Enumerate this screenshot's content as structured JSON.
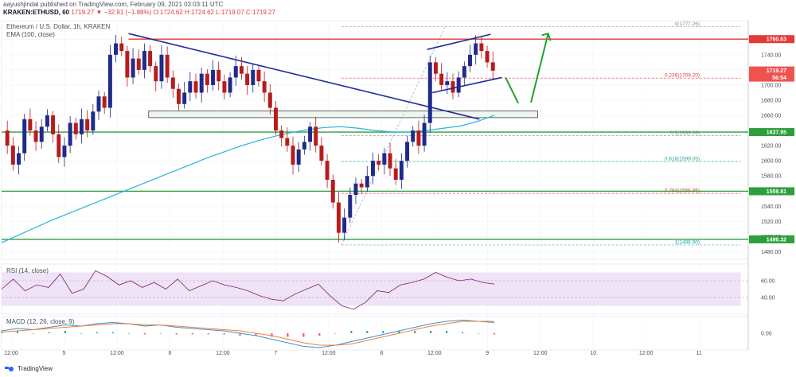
{
  "header": {
    "published": "aayushjindal published on TradingView.com, February 09, 2021 03:03:11 UTC",
    "symbol": "KRAKEN:ETHUSD, 60",
    "ohlc": "1719.27 ▼ −32.91 (−1.88%) O:1724.62 H:1724.62 L:1719.07 C:1719.27"
  },
  "legend": {
    "main_title": "Ethereum / U.S. Dollar, 1h, KRAKEN",
    "ema": "EMA (100, close)",
    "rsi": "RSI (14, close)",
    "macd": "MACD (12, 26, close, 9)"
  },
  "footer": {
    "brand": "TradingView"
  },
  "colors": {
    "up": "#26a69a",
    "down": "#ef5350",
    "candle_up": "#1e2a8c",
    "candle_down": "#b71c1c",
    "ema": "#26b5d6",
    "support": "#2e9e3a",
    "resistance": "#e53935",
    "trend": "#1f2a9e",
    "arrow": "#1aa32e",
    "rsi": "#7b1f6f",
    "rsi_band": "#efe3f7",
    "macd": "#3f8fd6",
    "signal": "#f08030"
  },
  "chart_data": {
    "type": "candlestick",
    "title": "Ethereum / U.S. Dollar, 1h, KRAKEN",
    "x_ticks": [
      "12:00",
      "5",
      "12:00",
      "6",
      "12:00",
      "7",
      "12:00",
      "8",
      "12:00",
      "9",
      "12:00",
      "10",
      "12:00",
      "11"
    ],
    "y_ticks": [
      1480,
      1500,
      1520,
      1540,
      1560,
      1580,
      1600,
      1620,
      1640,
      1660,
      1680,
      1700,
      1720,
      1740,
      1760
    ],
    "ylim": [
      1470,
      1785
    ],
    "close_path": [
      1640,
      1620,
      1595,
      1610,
      1655,
      1640,
      1625,
      1645,
      1660,
      1635,
      1605,
      1620,
      1650,
      1635,
      1655,
      1640,
      1665,
      1685,
      1670,
      1740,
      1755,
      1745,
      1710,
      1735,
      1720,
      1745,
      1725,
      1705,
      1740,
      1710,
      1695,
      1675,
      1690,
      1705,
      1690,
      1715,
      1700,
      1720,
      1705,
      1690,
      1710,
      1725,
      1715,
      1700,
      1720,
      1705,
      1690,
      1670,
      1640,
      1630,
      1620,
      1595,
      1615,
      1625,
      1645,
      1620,
      1600,
      1575,
      1545,
      1505,
      1525,
      1555,
      1570,
      1565,
      1580,
      1600,
      1595,
      1610,
      1590,
      1575,
      1600,
      1625,
      1640,
      1620,
      1650,
      1730,
      1715,
      1700,
      1705,
      1690,
      1710,
      1725,
      1740,
      1755,
      1745,
      1730,
      1719
    ],
    "price_labels": [
      {
        "value": 1760.63,
        "label": "1760.63",
        "color": "#e53935"
      },
      {
        "value": 1719.27,
        "label": "1719.27",
        "color": "#ef5350"
      },
      {
        "value": 1719.27,
        "label": "56:54",
        "color": "#ef5350"
      },
      {
        "value": 1637.95,
        "label": "1637.95",
        "color": "#2e9e3a"
      },
      {
        "value": 1559.81,
        "label": "1559.81",
        "color": "#2e9e3a"
      },
      {
        "value": 1496.32,
        "label": "1496.32",
        "color": "#2e9e3a"
      }
    ],
    "fib_levels": [
      {
        "label": "0(1777.26)",
        "value": 1777.26,
        "color": "#888888"
      },
      {
        "label": "0.236(1709.20)",
        "value": 1709.2,
        "color": "#e53935"
      },
      {
        "label": "0.5(1633.08)",
        "value": 1633.08,
        "color": "#888888"
      },
      {
        "label": "0.618(1599.05)",
        "value": 1599.05,
        "color": "#26a69a"
      },
      {
        "label": "0.764(1556.95)",
        "value": 1556.95,
        "color": "#e53935"
      },
      {
        "label": "1(1488.90)",
        "value": 1488.9,
        "color": "#26a69a"
      }
    ],
    "horizontal_lines": [
      {
        "value": 1760.63,
        "name": "resistance"
      },
      {
        "value": 1637.95,
        "name": "support-1"
      },
      {
        "value": 1559.81,
        "name": "support-2"
      },
      {
        "value": 1496.32,
        "name": "support-3"
      }
    ],
    "support_zone": [
      1657,
      1666
    ],
    "trendlines": [
      {
        "from": {
          "x": 0.17,
          "y": 1768
        },
        "to": {
          "x": 0.64,
          "y": 1655
        }
      },
      {
        "from": {
          "x": 0.57,
          "y": 1747
        },
        "to": {
          "x": 0.655,
          "y": 1767
        }
      },
      {
        "from": {
          "x": 0.577,
          "y": 1690
        },
        "to": {
          "x": 0.67,
          "y": 1710
        }
      }
    ],
    "ema": [
      1492,
      1502,
      1512,
      1522,
      1531,
      1540,
      1549,
      1558,
      1567,
      1576,
      1585,
      1594,
      1603,
      1611,
      1619,
      1626,
      1632,
      1637,
      1641,
      1644,
      1645,
      1643,
      1640,
      1638,
      1638,
      1640,
      1643,
      1646,
      1652,
      1660
    ],
    "rsi": {
      "ylim": [
        20,
        80
      ],
      "ticks": [
        40,
        60
      ],
      "band": [
        30,
        70
      ],
      "values": [
        50,
        62,
        48,
        55,
        52,
        68,
        45,
        50,
        72,
        65,
        55,
        60,
        52,
        58,
        50,
        62,
        48,
        54,
        60,
        55,
        52,
        48,
        42,
        38,
        36,
        44,
        50,
        56,
        42,
        30,
        26,
        34,
        48,
        46,
        55,
        58,
        62,
        70,
        64,
        60,
        62,
        58,
        56
      ]
    },
    "macd": {
      "ticks": [
        0.0
      ],
      "ylim": [
        -14,
        14
      ],
      "macd": [
        2,
        4,
        3,
        5,
        7,
        6,
        8,
        9,
        8,
        6,
        7,
        5,
        4,
        3,
        2,
        0,
        -2,
        -5,
        -8,
        -11,
        -12,
        -10,
        -7,
        -4,
        -1,
        2,
        5,
        8,
        10,
        11,
        10,
        9
      ],
      "signal": [
        1,
        2,
        3,
        4,
        5,
        6,
        7,
        8,
        8,
        7,
        7,
        6,
        5,
        4,
        3,
        2,
        0,
        -2,
        -5,
        -8,
        -10,
        -10,
        -9,
        -6,
        -3,
        0,
        3,
        6,
        8,
        10,
        10,
        10
      ],
      "histogram": [
        1,
        2,
        0,
        1,
        2,
        0,
        1,
        1,
        0,
        -1,
        0,
        -1,
        -1,
        -1,
        -1,
        -2,
        -2,
        -3,
        -3,
        -3,
        -2,
        0,
        2,
        2,
        2,
        2,
        2,
        2,
        2,
        1,
        0,
        -1
      ]
    }
  }
}
